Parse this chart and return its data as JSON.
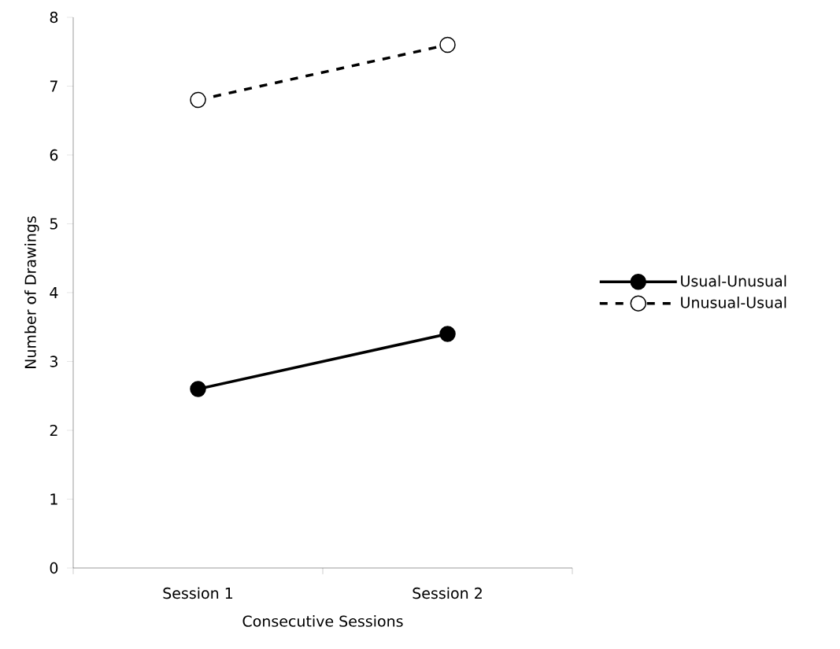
{
  "chart_data": {
    "type": "line",
    "xlabel": "Consecutive Sessions",
    "ylabel": "Number of Drawings",
    "categories": [
      "Session 1",
      "Session 2"
    ],
    "series": [
      {
        "name": "Usual-Unusual",
        "color": "#000000",
        "values": [
          2.6,
          3.4
        ],
        "line_style": "solid"
      },
      {
        "name": "Unusual-Usual",
        "color": "#000000",
        "values": [
          6.8,
          7.6
        ],
        "line_style": "dashed"
      }
    ],
    "ylim": [
      0,
      8
    ],
    "yticks": [
      0,
      1,
      2,
      3,
      4,
      5,
      6,
      7,
      8
    ],
    "marker": "circle",
    "legend": "right",
    "grid": false
  }
}
